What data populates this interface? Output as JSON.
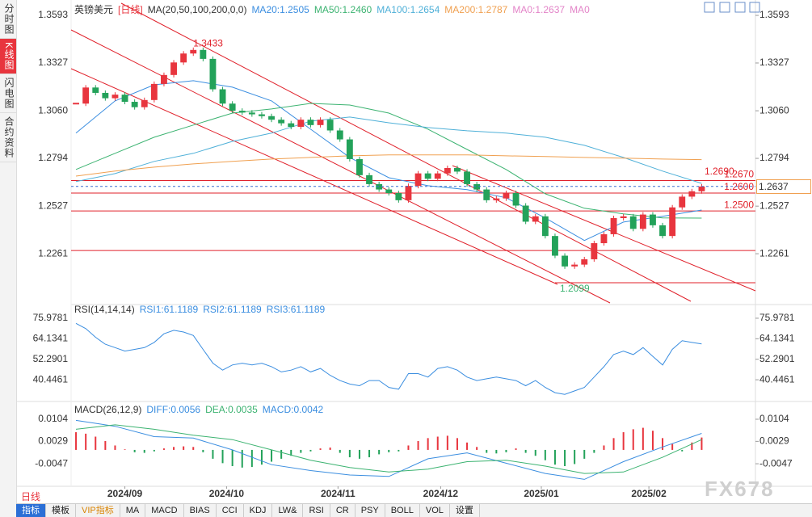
{
  "sidebar": [
    "分时图",
    "K线图",
    "闪电图",
    "合约资料"
  ],
  "period_label": "日线",
  "toolbar": [
    "指标",
    "模板",
    "VIP指标",
    "MA",
    "MACD",
    "BIAS",
    "CCI",
    "KDJ",
    "LW&",
    "RSI",
    "CR",
    "PSY",
    "BOLL",
    "VOL",
    "设置"
  ],
  "watermark": "FX678",
  "chart_data": [
    {
      "type": "candlestick",
      "title": "英镑美元",
      "period": "[日线]",
      "indicator": "MA(20,50,100,200,0,0)",
      "xlim": [
        -0.5,
        69.5
      ],
      "ylim": [
        1.1986,
        1.3661
      ],
      "yticks": [
        1.3593,
        1.3327,
        {
          "value": 1.306,
          "label": "1.3060"
        },
        1.2794,
        1.2527,
        1.2261
      ],
      "up_color": "#e8353e",
      "down_color": "#23a25a",
      "closes": [
        1.31,
        1.319,
        1.316,
        1.313,
        1.315,
        1.311,
        1.308,
        1.312,
        1.321,
        1.326,
        1.333,
        1.338,
        1.34,
        1.335,
        1.318,
        1.31,
        1.306,
        1.305,
        1.304,
        1.303,
        1.301,
        1.299,
        1.297,
        1.301,
        1.298,
        1.301,
        1.295,
        1.29,
        1.279,
        1.27,
        1.265,
        1.262,
        1.26,
        1.256,
        1.264,
        1.271,
        1.268,
        1.271,
        1.274,
        1.272,
        1.265,
        1.262,
        1.256,
        1.257,
        1.26,
        1.253,
        1.244,
        1.247,
        1.236,
        1.225,
        1.219,
        1.22,
        1.223,
        1.232,
        1.237,
        1.246,
        1.247,
        1.24,
        1.248,
        1.242,
        1.236,
        1.252,
        1.258,
        1.261,
        1.2637
      ],
      "series": [
        {
          "name": "MA20:1.2505",
          "color": "#3b8ee0",
          "x": [
            0,
            4,
            8,
            12,
            16,
            20,
            24,
            28,
            32,
            36,
            40,
            44,
            48,
            52,
            56,
            60,
            64
          ],
          "values": [
            1.2935,
            1.3115,
            1.3205,
            1.3228,
            1.3192,
            1.3115,
            1.2957,
            1.2799,
            1.2686,
            1.2641,
            1.2619,
            1.2574,
            1.2461,
            1.2335,
            1.2438,
            1.247,
            1.2505
          ]
        },
        {
          "name": "MA50:1.2460",
          "color": "#3cb371",
          "x": [
            0,
            4,
            8,
            12,
            16,
            20,
            24,
            28,
            32,
            36,
            40,
            44,
            48,
            52,
            56,
            60,
            64
          ],
          "values": [
            1.2732,
            1.2822,
            1.2912,
            1.298,
            1.3047,
            1.307,
            1.3101,
            1.3092,
            1.3047,
            1.2957,
            1.2844,
            1.2732,
            1.2596,
            1.2515,
            1.2484,
            1.2461,
            1.246
          ]
        },
        {
          "name": "MA100:1.2654",
          "color": "#4fb0d8",
          "x": [
            0,
            4,
            8,
            12,
            16,
            20,
            24,
            28,
            32,
            36,
            40,
            44,
            48,
            52,
            56,
            60,
            64
          ],
          "values": [
            1.2664,
            1.2709,
            1.2777,
            1.2822,
            1.2889,
            1.2935,
            1.3002,
            1.3025,
            1.2993,
            1.2966,
            1.2948,
            1.2935,
            1.2912,
            1.2867,
            1.2799,
            1.2723,
            1.2654
          ]
        },
        {
          "name": "MA200:1.2787",
          "color": "#f0a050",
          "x": [
            0,
            4,
            8,
            12,
            16,
            20,
            24,
            28,
            32,
            36,
            40,
            44,
            48,
            52,
            56,
            60,
            64
          ],
          "values": [
            1.2695,
            1.2723,
            1.2745,
            1.2763,
            1.2777,
            1.279,
            1.2799,
            1.2808,
            1.2813,
            1.2813,
            1.2813,
            1.2808,
            1.2804,
            1.2799,
            1.2795,
            1.279,
            1.2787
          ]
        }
      ],
      "extra_legend": [
        {
          "text": "MA0:1.2637",
          "color": "#e384c8"
        },
        {
          "text": "MA0",
          "color": "#e384c8"
        }
      ],
      "level_color": "#e0202a",
      "levels": [
        {
          "value": 1.267,
          "label": "1.2670"
        },
        {
          "value": 1.26,
          "label": "1.2600"
        },
        {
          "value": 1.25,
          "label": "1.2500"
        }
      ],
      "lines": [
        1.2279
      ],
      "recent_high": {
        "value": 1.269,
        "label": "1.2690"
      },
      "high": {
        "x": 12,
        "value": 1.3433
      },
      "low": {
        "x": 49,
        "value": 1.2099
      }
    },
    {
      "type": "line",
      "title": "RSI(14,14,14)",
      "xlim": [
        -0.5,
        69.5
      ],
      "ylim": [
        28.84,
        82.48
      ],
      "yticks": [
        75.9781,
        64.1341,
        52.2901,
        40.4461
      ],
      "series": [
        {
          "name": "RSI1:61.1189",
          "color": "#3b8ee0",
          "values": [
            73,
            70,
            65,
            61,
            59,
            57,
            58,
            59,
            62,
            67,
            69,
            68,
            66,
            58,
            50,
            46,
            49,
            50,
            49,
            50,
            48,
            45,
            46,
            48,
            45,
            47,
            43,
            40,
            38,
            37,
            40,
            40,
            36,
            35,
            44,
            44,
            42,
            47,
            48,
            46,
            42,
            40,
            41,
            42,
            41,
            40,
            37,
            40,
            36,
            33,
            32,
            34,
            36,
            42,
            48,
            55,
            57,
            55,
            59,
            54,
            49,
            58,
            63,
            62,
            61.1189
          ]
        }
      ],
      "extra_legend": [
        {
          "text": "RSI2:61.1189",
          "color": "#3b8ee0"
        },
        {
          "text": "RSI3:61.1189",
          "color": "#3b8ee0"
        }
      ]
    },
    {
      "type": "macd",
      "title": "MACD(26,12,9)",
      "xlim": [
        -0.5,
        69.5
      ],
      "ylim": [
        -0.0118,
        0.0156
      ],
      "yticks": [
        0.0104,
        0.0029,
        -0.0047
      ],
      "xticks": [
        {
          "value": 5,
          "label": "2024/09"
        },
        {
          "value": 15.4,
          "label": "2024/10"
        },
        {
          "value": 26.8,
          "label": "2024/11"
        },
        {
          "value": 37.3,
          "label": "2024/12"
        },
        {
          "value": 47.6,
          "label": "2025/01"
        },
        {
          "value": 58.6,
          "label": "2025/02"
        }
      ],
      "series": [
        {
          "name": "DIFF:0.0056",
          "color": "#3b8ee0",
          "x": [
            0,
            4,
            8,
            12,
            16,
            20,
            24,
            28,
            32,
            36,
            40,
            44,
            48,
            52,
            56,
            60,
            64
          ],
          "values": [
            0.01,
            0.008,
            0.0045,
            0.004,
            0,
            -0.005,
            -0.007,
            -0.0085,
            -0.009,
            -0.003,
            -0.001,
            -0.0045,
            -0.008,
            -0.01,
            -0.004,
            0.001,
            0.0056
          ]
        },
        {
          "name": "DEA:0.0035",
          "color": "#3cb371",
          "x": [
            0,
            4,
            8,
            12,
            16,
            20,
            24,
            28,
            32,
            36,
            40,
            44,
            48,
            52,
            56,
            60,
            64
          ],
          "values": [
            0.007,
            0.0085,
            0.007,
            0.005,
            0.0035,
            0,
            -0.0035,
            -0.006,
            -0.0075,
            -0.0065,
            -0.004,
            -0.0035,
            -0.0055,
            -0.008,
            -0.0075,
            -0.0025,
            0.0035
          ]
        }
      ],
      "histogram": {
        "name": "MACD:0.0042",
        "color": "#3b8ee0",
        "up_color": "#e8353e",
        "down_color": "#23a25a",
        "values": [
          0.006,
          0.0055,
          0.0045,
          0.003,
          0.0015,
          0.0002,
          -0.0008,
          -0.001,
          -0.0005,
          0.0005,
          0.001,
          0.0012,
          0.001,
          -0.0008,
          -0.003,
          -0.0045,
          -0.0055,
          -0.006,
          -0.0058,
          -0.005,
          -0.004,
          -0.003,
          -0.002,
          -0.001,
          -0.0005,
          0.0005,
          0.0008,
          -0.001,
          -0.0025,
          -0.003,
          -0.0025,
          -0.0015,
          -0.0008,
          -0.0005,
          0.0015,
          0.003,
          0.004,
          0.0045,
          0.0048,
          0.004,
          0.0025,
          0.001,
          -0.001,
          -0.0012,
          -0.0008,
          0.0005,
          -0.001,
          -0.002,
          -0.0035,
          -0.005,
          -0.0055,
          -0.0048,
          -0.003,
          -0.001,
          0.0015,
          0.004,
          0.006,
          0.007,
          0.0075,
          0.0065,
          0.004,
          0.002,
          -0.0005,
          0.0025,
          0.0042
        ]
      }
    }
  ]
}
